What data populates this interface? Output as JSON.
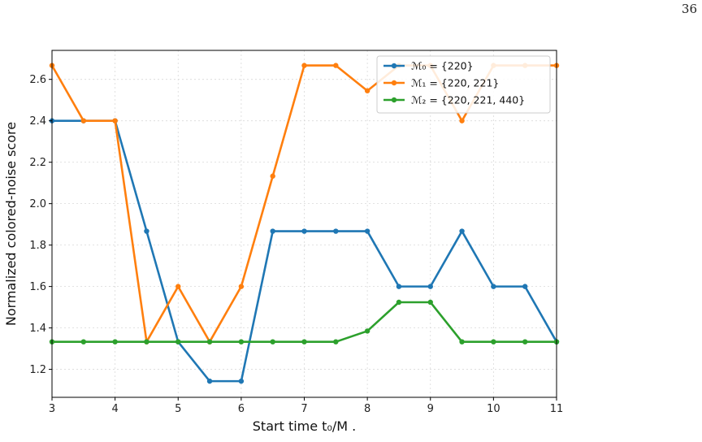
{
  "page": {
    "number": "36"
  },
  "chart_data": {
    "type": "line",
    "xlabel": "Start time t₀/M .",
    "ylabel": "Normalized colored-noise score",
    "xlim": [
      3,
      11
    ],
    "ylim": [
      1.065,
      2.74
    ],
    "grid": true,
    "legend_position": "top-right",
    "x": [
      3,
      3.5,
      4,
      4.5,
      5,
      5.5,
      6,
      6.5,
      7,
      7.5,
      8,
      8.5,
      9,
      9.5,
      10,
      10.5,
      11
    ],
    "x_ticks": [
      "3",
      "4",
      "5",
      "6",
      "7",
      "8",
      "9",
      "10",
      "11"
    ],
    "y_ticks": [
      "1.2",
      "1.4",
      "1.6",
      "1.8",
      "2.0",
      "2.2",
      "2.4",
      "2.6"
    ],
    "series": [
      {
        "name": "ℳ₀ = {220}",
        "color": "#1f77b4",
        "values": [
          2.4,
          2.4,
          2.4,
          1.867,
          1.333,
          1.143,
          1.143,
          1.867,
          1.867,
          1.867,
          1.867,
          1.6,
          1.6,
          1.867,
          1.6,
          1.6,
          1.333
        ]
      },
      {
        "name": "ℳ₁ = {220, 221}",
        "color": "#ff7f0e",
        "values": [
          2.667,
          2.4,
          2.4,
          1.333,
          1.6,
          1.333,
          1.6,
          2.133,
          2.667,
          2.667,
          2.545,
          2.667,
          2.667,
          2.4,
          2.667,
          2.667,
          2.667
        ]
      },
      {
        "name": "ℳ₂ = {220, 221, 440}",
        "color": "#2ca02c",
        "values": [
          1.333,
          1.333,
          1.333,
          1.333,
          1.333,
          1.333,
          1.333,
          1.333,
          1.333,
          1.333,
          1.385,
          1.524,
          1.524,
          1.333,
          1.333,
          1.333,
          1.333
        ]
      }
    ]
  }
}
